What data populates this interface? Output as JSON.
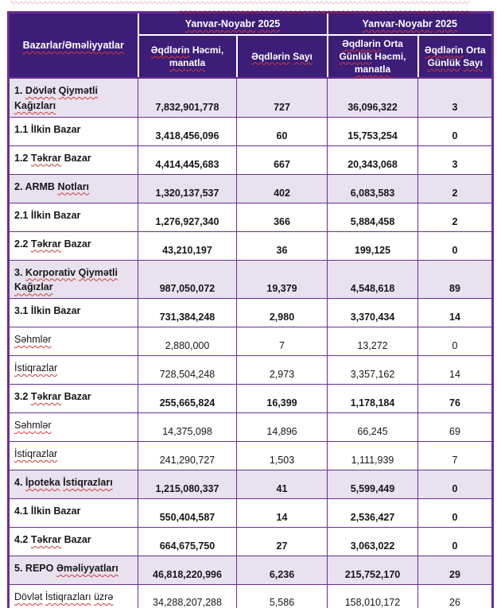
{
  "colors": {
    "header_bg": "#3C1D78",
    "header_text": "#FFFFFF",
    "grid": "#6B2D94",
    "section_bg": "#E8E2EF",
    "row_bg": "#FFFFFF",
    "body_text": "#161616",
    "spell_red": "#D23A36",
    "page_bg": "#FFFFFF"
  },
  "artifacts": {
    "top_clipped_spellcheck_wave": "partial red wavy underline from cropped text above the table",
    "header_edge_spellcheck_wave": "dark red wavy mark along top edge of header band"
  },
  "table": {
    "corner_header": {
      "label": "Bazarlar/Əməliyyatlar",
      "misspelled": [
        "Bazarlar/Əməliyyatlar"
      ]
    },
    "period_headers": [
      {
        "label": "Yanvar-Noyabr 2025",
        "misspelled": [
          "Yanvar-Noyabr",
          "2025"
        ]
      },
      {
        "label": "Yanvar-Noyabr 2025",
        "misspelled": [
          "Yanvar-Noyabr",
          "2025"
        ]
      }
    ],
    "column_headers": [
      {
        "label": "Əqdlərin Həcmi, manatla",
        "misspelled": [
          "Əqdlərin",
          "manatla"
        ]
      },
      {
        "label": "Əqdlərin Sayı",
        "misspelled": [
          "Əqdlərin",
          "Sayı"
        ]
      },
      {
        "label": "Əqdlərin Orta Günlük Həcmi, manatla",
        "misspelled": [
          "Əqdlərin",
          "Günlük",
          "manatla"
        ]
      },
      {
        "label": "Əqdlərin Orta Günlük Sayı",
        "misspelled": [
          "Əqdlərin",
          "Günlük",
          "Sayı"
        ]
      }
    ],
    "rows": [
      {
        "label": "1. Dövlət Qiymətli Kağızları",
        "misspelled": [
          "Dövlət",
          "Qiymətli",
          "Kağızları"
        ],
        "section": true,
        "bold": true,
        "values": [
          "7,832,901,778",
          "727",
          "36,096,322",
          "3"
        ]
      },
      {
        "label": "1.1 İlkin Bazar",
        "misspelled": [],
        "section": false,
        "bold": true,
        "values": [
          "3,418,456,096",
          "60",
          "15,753,254",
          "0"
        ]
      },
      {
        "label": "1.2 Təkrar Bazar",
        "misspelled": [
          "Təkrar"
        ],
        "section": false,
        "bold": true,
        "values": [
          "4,414,445,683",
          "667",
          "20,343,068",
          "3"
        ]
      },
      {
        "label": "2. ARMB Notları",
        "misspelled": [
          "Notları"
        ],
        "section": true,
        "bold": true,
        "values": [
          "1,320,137,537",
          "402",
          "6,083,583",
          "2"
        ]
      },
      {
        "label": "2.1 İlkin Bazar",
        "misspelled": [],
        "section": false,
        "bold": true,
        "values": [
          "1,276,927,340",
          "366",
          "5,884,458",
          "2"
        ]
      },
      {
        "label": "2.2 Təkrar Bazar",
        "misspelled": [
          "Təkrar"
        ],
        "section": false,
        "bold": true,
        "values": [
          "43,210,197",
          "36",
          "199,125",
          "0"
        ]
      },
      {
        "label": "3. Korporativ Qiymətli Kağızlar",
        "misspelled": [
          "Korporativ",
          "Qiymətli",
          "Kağızlar"
        ],
        "section": true,
        "bold": true,
        "values": [
          "987,050,072",
          "19,379",
          "4,548,618",
          "89"
        ]
      },
      {
        "label": "3.1 İlkin Bazar",
        "misspelled": [],
        "section": false,
        "bold": true,
        "values": [
          "731,384,248",
          "2,980",
          "3,370,434",
          "14"
        ]
      },
      {
        "label": "Səhmlər",
        "misspelled": [
          "Səhmlər"
        ],
        "section": false,
        "bold": false,
        "values": [
          "2,880,000",
          "7",
          "13,272",
          "0"
        ]
      },
      {
        "label": "İstiqrazlar",
        "misspelled": [
          "İstiqrazlar"
        ],
        "section": false,
        "bold": false,
        "values": [
          "728,504,248",
          "2,973",
          "3,357,162",
          "14"
        ]
      },
      {
        "label": "3.2 Təkrar Bazar",
        "misspelled": [
          "Təkrar"
        ],
        "section": false,
        "bold": true,
        "values": [
          "255,665,824",
          "16,399",
          "1,178,184",
          "76"
        ]
      },
      {
        "label": "Səhmlər",
        "misspelled": [
          "Səhmlər"
        ],
        "section": false,
        "bold": false,
        "values": [
          "14,375,098",
          "14,896",
          "66,245",
          "69"
        ]
      },
      {
        "label": "İstiqrazlar",
        "misspelled": [
          "İstiqrazlar"
        ],
        "section": false,
        "bold": false,
        "values": [
          "241,290,727",
          "1,503",
          "1,111,939",
          "7"
        ]
      },
      {
        "label": "4. İpoteka İstiqrazları",
        "misspelled": [
          "İpoteka",
          "İstiqrazları"
        ],
        "section": true,
        "bold": true,
        "values": [
          "1,215,080,337",
          "41",
          "5,599,449",
          "0"
        ]
      },
      {
        "label": "4.1 İlkin Bazar",
        "misspelled": [],
        "section": false,
        "bold": true,
        "values": [
          "550,404,587",
          "14",
          "2,536,427",
          "0"
        ]
      },
      {
        "label": "4.2 Təkrar Bazar",
        "misspelled": [
          "Təkrar"
        ],
        "section": false,
        "bold": true,
        "values": [
          "664,675,750",
          "27",
          "3,063,022",
          "0"
        ]
      },
      {
        "label": "5. REPO Əməliyyatları",
        "misspelled": [
          "Əməliyyatları"
        ],
        "section": true,
        "bold": true,
        "values": [
          "46,818,220,996",
          "6,236",
          "215,752,170",
          "29"
        ]
      },
      {
        "label": "Dövlət İstiqrazları üzrə",
        "misspelled": [
          "Dövlət",
          "İstiqrazları",
          "üzrə"
        ],
        "section": false,
        "bold": false,
        "values": [
          "34,288,207,288",
          "5,586",
          "158,010,172",
          "26"
        ]
      }
    ]
  }
}
